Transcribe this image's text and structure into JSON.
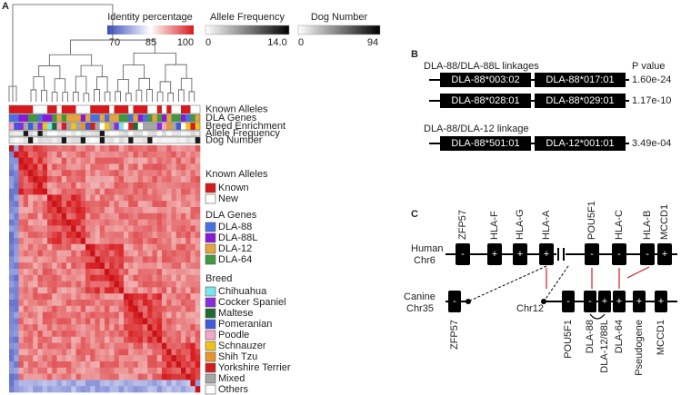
{
  "panel_a": {
    "label": "A",
    "colorbars": [
      {
        "title": "Identity percentage",
        "ticks": [
          "70",
          "85",
          "100"
        ]
      },
      {
        "title": "Allele Frequency",
        "ticks": [
          "0",
          "14.0"
        ]
      },
      {
        "title": "Dog Number",
        "ticks": [
          "0",
          "94"
        ]
      }
    ],
    "tracks": [
      "Known Alleles",
      "DLA Genes",
      "Breed Enrichment",
      "Allele Frequency",
      "Dog Number"
    ],
    "legends": [
      {
        "title": "Known Alleles",
        "items": [
          {
            "label": "Known",
            "color": "#d7191c"
          },
          {
            "label": "New",
            "color": "#ffffff"
          }
        ]
      },
      {
        "title": "DLA Genes",
        "items": [
          {
            "label": "DLA-88",
            "color": "#4a6fe3"
          },
          {
            "label": "DLA-88L",
            "color": "#8a1ad6"
          },
          {
            "label": "DLA-12",
            "color": "#e8a43c"
          },
          {
            "label": "DLA-64",
            "color": "#3f9a3f"
          }
        ]
      },
      {
        "title": "Breed",
        "items": [
          {
            "label": "Chihuahua",
            "color": "#7fe3f0"
          },
          {
            "label": "Cocker Spaniel",
            "color": "#8a2be2"
          },
          {
            "label": "Maltese",
            "color": "#1e6b2f"
          },
          {
            "label": "Pomeranian",
            "color": "#3d5bdb"
          },
          {
            "label": "Poodle",
            "color": "#f4a6c6"
          },
          {
            "label": "Schnauzer",
            "color": "#f2c21c"
          },
          {
            "label": "Shih Tzu",
            "color": "#e8962a"
          },
          {
            "label": "Yorkshire Terrier",
            "color": "#d21e1e"
          },
          {
            "label": "Mixed",
            "color": "#a6a6a6"
          },
          {
            "label": "Others",
            "color": "#ffffff"
          }
        ]
      }
    ]
  },
  "panel_b": {
    "label": "B",
    "p_header": "P value",
    "groups": [
      {
        "title": "DLA-88/DLA-88L linkages",
        "rows": [
          [
            "DLA-88*003:02",
            "DLA-88*017:01",
            "1.60e-24"
          ],
          [
            "DLA-88*028:01",
            "DLA-88*029:01",
            "1.17e-10"
          ]
        ]
      },
      {
        "title": "DLA-88/DLA-12 linkage",
        "rows": [
          [
            "DLA-88*501:01",
            "DLA-12*001:01",
            "3.49e-04"
          ]
        ]
      }
    ]
  },
  "panel_c": {
    "label": "C",
    "human": {
      "species": "Human",
      "chromosome": "Chr6",
      "genes": [
        {
          "name": "ZFP57",
          "strand": "-"
        },
        {
          "name": "HLA-F",
          "strand": "+"
        },
        {
          "name": "HLA-G",
          "strand": "+"
        },
        {
          "name": "HLA-A",
          "strand": "+"
        },
        {
          "name": "POU5F1",
          "strand": "-"
        },
        {
          "name": "HLA-C",
          "strand": "-"
        },
        {
          "name": "HLA-B",
          "strand": "-"
        },
        {
          "name": "MCCD1",
          "strand": "+"
        }
      ]
    },
    "canine": {
      "species": "Canine",
      "chromosomes": [
        "Chr35",
        "Chr12"
      ],
      "genes": [
        {
          "name": "ZFP57",
          "strand": "-"
        },
        {
          "name": "POU5F1",
          "strand": "-"
        },
        {
          "name": "DLA-88",
          "strand": "-"
        },
        {
          "name": "DLA-12/88L",
          "strand": "+"
        },
        {
          "name": "DLA-64",
          "strand": "+"
        },
        {
          "name": "Pseudogene",
          "strand": "+"
        },
        {
          "name": "MCCD1",
          "strand": "+"
        }
      ]
    }
  }
}
